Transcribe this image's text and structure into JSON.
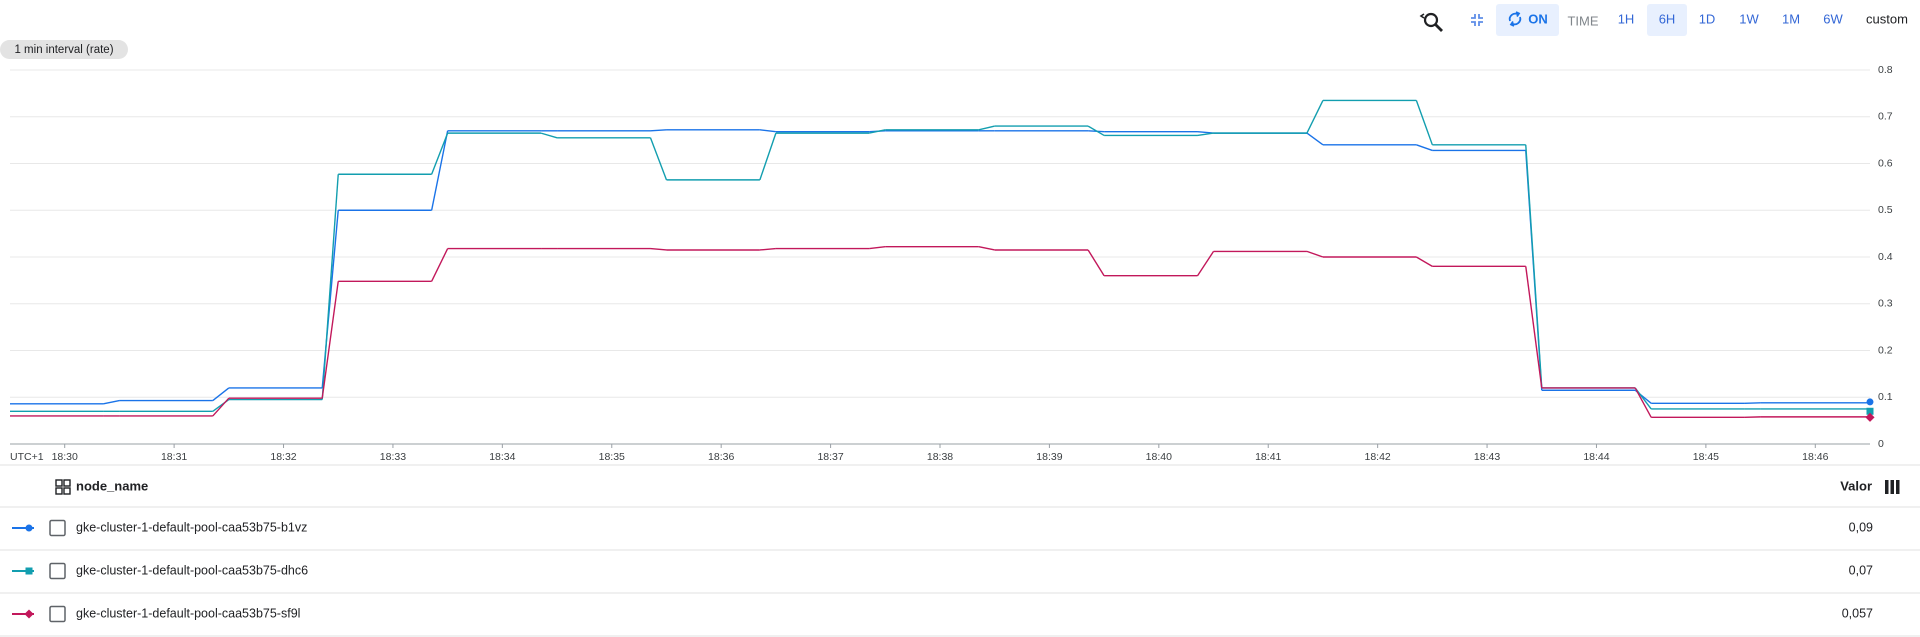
{
  "toolbar": {
    "refresh": "ON",
    "time": "TIME",
    "ranges": [
      "1H",
      "6H",
      "1D",
      "1W",
      "1M",
      "6W"
    ],
    "selected_range": 1,
    "custom": "custom"
  },
  "chart_data": {
    "type": "line",
    "interval_label": "1 min interval (rate)",
    "timezone_label": "UTC+1",
    "categories": [
      "18:30",
      "18:31",
      "18:32",
      "18:33",
      "18:34",
      "18:35",
      "18:36",
      "18:37",
      "18:38",
      "18:39",
      "18:40",
      "18:41",
      "18:42",
      "18:43",
      "18:44",
      "18:45",
      "18:46"
    ],
    "ylim": [
      0,
      0.8
    ],
    "yticks": [
      0,
      0.1,
      0.2,
      0.3,
      0.4,
      0.5,
      0.6,
      0.7,
      0.8
    ],
    "grid": true,
    "series": [
      {
        "name": "gke-cluster-1-default-pool-caa53b75-b1vz",
        "color": "#1a73e8",
        "marker": "circle",
        "values": [
          0.086,
          0.093,
          0.12,
          0.5,
          0.67,
          0.67,
          0.672,
          0.668,
          0.67,
          0.67,
          0.668,
          0.665,
          0.64,
          0.628,
          0.115,
          0.087,
          0.088
        ],
        "legend_value": 0.09,
        "legend_value_label": "0,09"
      },
      {
        "name": "gke-cluster-1-default-pool-caa53b75-dhc6",
        "color": "#129eaf",
        "marker": "square",
        "values": [
          0.07,
          0.07,
          0.095,
          0.577,
          0.665,
          0.655,
          0.565,
          0.665,
          0.672,
          0.68,
          0.66,
          0.665,
          0.735,
          0.64,
          0.12,
          0.075,
          0.075
        ],
        "legend_value": 0.07,
        "legend_value_label": "0,07"
      },
      {
        "name": "gke-cluster-1-default-pool-caa53b75-sf9l",
        "color": "#c2185b",
        "marker": "diamond",
        "values": [
          0.06,
          0.06,
          0.098,
          0.348,
          0.418,
          0.418,
          0.415,
          0.418,
          0.422,
          0.415,
          0.36,
          0.412,
          0.4,
          0.38,
          0.12,
          0.057,
          0.058
        ],
        "legend_value": 0.057,
        "legend_value_label": "0,057"
      }
    ]
  },
  "table": {
    "header": [
      "node_name",
      "Valor"
    ]
  }
}
